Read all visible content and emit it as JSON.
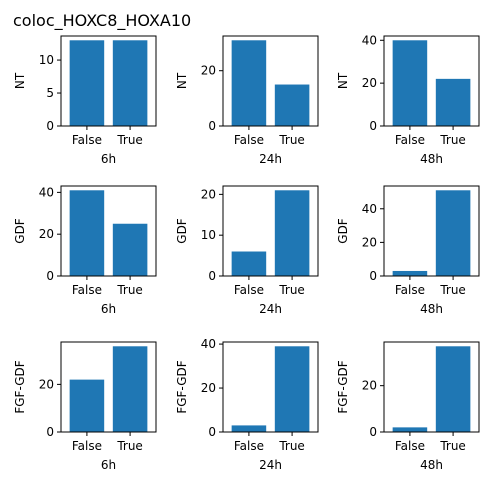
{
  "title": "coloc_HOXC8_HOXA10",
  "colors": {
    "bar": "#1f77b4",
    "axis": "#000000",
    "background": "#ffffff"
  },
  "chart_data": [
    {
      "type": "bar",
      "categories": [
        "False",
        "True"
      ],
      "values": [
        13,
        13
      ],
      "xlabel": "6h",
      "ylabel": "NT",
      "ylim": [
        0,
        13.65
      ],
      "yticks": [
        0,
        5,
        10
      ],
      "ytick_labels": [
        "0",
        "5",
        "10"
      ],
      "grid": false
    },
    {
      "type": "bar",
      "categories": [
        "False",
        "True"
      ],
      "values": [
        31,
        15
      ],
      "xlabel": "24h",
      "ylabel": "NT",
      "ylim": [
        0,
        32.55
      ],
      "yticks": [
        0,
        20
      ],
      "ytick_labels": [
        "0",
        "20"
      ],
      "grid": false
    },
    {
      "type": "bar",
      "categories": [
        "False",
        "True"
      ],
      "values": [
        40,
        22
      ],
      "xlabel": "48h",
      "ylabel": "NT",
      "ylim": [
        0,
        42
      ],
      "yticks": [
        0,
        20,
        40
      ],
      "ytick_labels": [
        "0",
        "20",
        "40"
      ],
      "grid": false
    },
    {
      "type": "bar",
      "categories": [
        "False",
        "True"
      ],
      "values": [
        41,
        25
      ],
      "xlabel": "6h",
      "ylabel": "GDF",
      "ylim": [
        0,
        43.05
      ],
      "yticks": [
        0,
        20,
        40
      ],
      "ytick_labels": [
        "0",
        "20",
        "40"
      ],
      "grid": false
    },
    {
      "type": "bar",
      "categories": [
        "False",
        "True"
      ],
      "values": [
        6,
        21
      ],
      "xlabel": "24h",
      "ylabel": "GDF",
      "ylim": [
        0,
        22.05
      ],
      "yticks": [
        0,
        10,
        20
      ],
      "ytick_labels": [
        "0",
        "10",
        "20"
      ],
      "grid": false
    },
    {
      "type": "bar",
      "categories": [
        "False",
        "True"
      ],
      "values": [
        3,
        51
      ],
      "xlabel": "48h",
      "ylabel": "GDF",
      "ylim": [
        0,
        53.55
      ],
      "yticks": [
        0,
        20,
        40
      ],
      "ytick_labels": [
        "0",
        "20",
        "40"
      ],
      "grid": false
    },
    {
      "type": "bar",
      "categories": [
        "False",
        "True"
      ],
      "values": [
        22,
        36
      ],
      "xlabel": "6h",
      "ylabel": "FGF-GDF",
      "ylim": [
        0,
        37.8
      ],
      "yticks": [
        0,
        20
      ],
      "ytick_labels": [
        "0",
        "20"
      ],
      "grid": false
    },
    {
      "type": "bar",
      "categories": [
        "False",
        "True"
      ],
      "values": [
        3,
        39
      ],
      "xlabel": "24h",
      "ylabel": "FGF-GDF",
      "ylim": [
        0,
        40.95
      ],
      "yticks": [
        0,
        20,
        40
      ],
      "ytick_labels": [
        "0",
        "20",
        "40"
      ],
      "grid": false
    },
    {
      "type": "bar",
      "categories": [
        "False",
        "True"
      ],
      "values": [
        2,
        37
      ],
      "xlabel": "48h",
      "ylabel": "FGF-GDF",
      "ylim": [
        0,
        38.85
      ],
      "yticks": [
        0,
        20
      ],
      "ytick_labels": [
        "0",
        "20"
      ],
      "grid": false
    }
  ]
}
